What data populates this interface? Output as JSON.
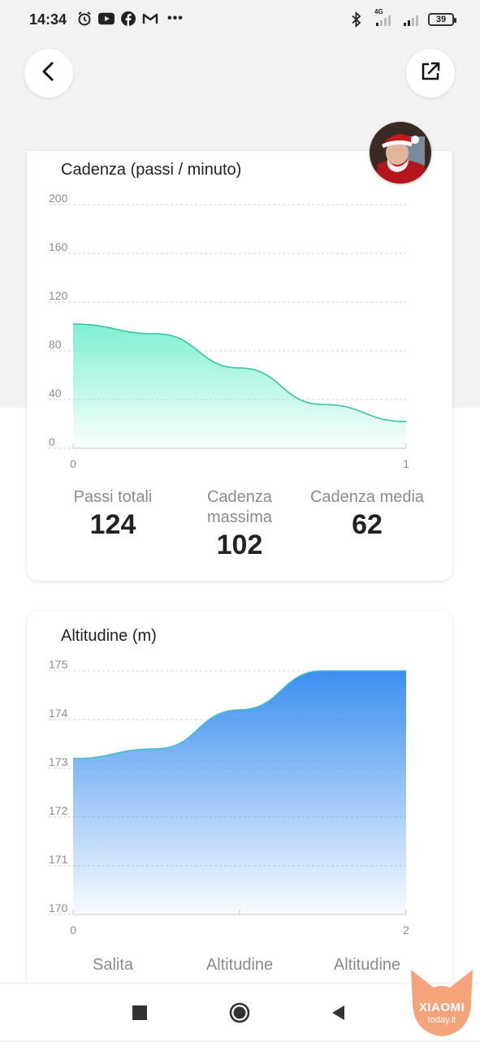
{
  "status_bar": {
    "time": "14:34",
    "network": "4G",
    "battery": "39",
    "more": "•••"
  },
  "cadence_card": {
    "title": "Cadenza (passi / minuto)",
    "stats": [
      {
        "label": "Passi totali",
        "value": "124"
      },
      {
        "label": "Cadenza massima",
        "value": "102"
      },
      {
        "label": "Cadenza media",
        "value": "62"
      }
    ]
  },
  "altitude_card": {
    "title": "Altitudine (m)",
    "stats": [
      {
        "label": "Salita"
      },
      {
        "label": "Altitudine"
      },
      {
        "label": "Altitudine"
      }
    ]
  },
  "watermark": {
    "brand": "XIAOMI",
    "site": "today.it"
  },
  "colors": {
    "cadence_fill_top": "#7ff0d2",
    "cadence_line": "#33c4a0",
    "altitude_fill_top": "#3b8ef0",
    "altitude_line": "#3ec0c8",
    "watermark": "#f5a37b"
  },
  "chart_data": [
    {
      "type": "area",
      "title": "Cadenza (passi / minuto)",
      "x": [
        0,
        0.25,
        0.5,
        0.75,
        1
      ],
      "values": [
        102,
        94,
        66,
        36,
        22
      ],
      "x_ticks": [
        "0",
        "1"
      ],
      "y_ticks": [
        "0",
        "40",
        "80",
        "120",
        "160",
        "200"
      ],
      "ylim": [
        0,
        200
      ],
      "xlim": [
        0,
        1
      ],
      "grid": true
    },
    {
      "type": "area",
      "title": "Altitudine (m)",
      "x": [
        0,
        0.5,
        1,
        1.5,
        2
      ],
      "values": [
        173.2,
        173.4,
        174.2,
        175,
        175
      ],
      "x_ticks": [
        "0",
        "2"
      ],
      "y_ticks": [
        "170",
        "171",
        "172",
        "173",
        "174",
        "175"
      ],
      "ylim": [
        170,
        175
      ],
      "xlim": [
        0,
        2
      ],
      "grid": true
    }
  ]
}
